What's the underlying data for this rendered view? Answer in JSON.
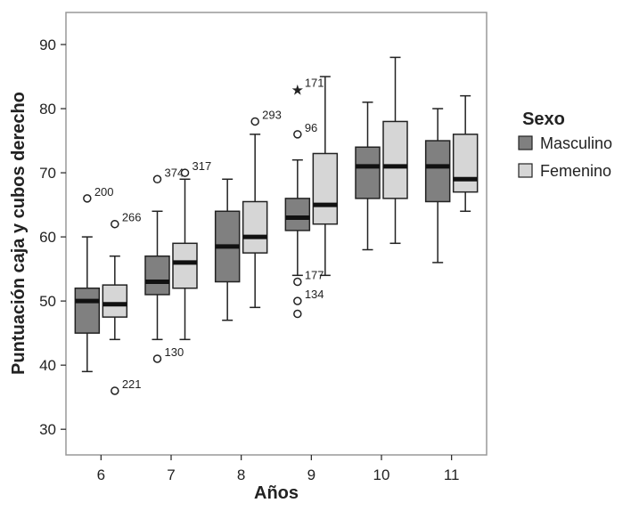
{
  "chart_data": {
    "type": "boxplot",
    "xlabel": "Años",
    "ylabel": "Puntuación caja y cubos derecho",
    "ylim": [
      26,
      95
    ],
    "yticks": [
      30,
      40,
      50,
      60,
      70,
      80,
      90
    ],
    "categories": [
      "6",
      "7",
      "8",
      "9",
      "10",
      "11"
    ],
    "legend": {
      "title": "Sexo",
      "placement": "right"
    },
    "colors": {
      "Masculino": "#808080",
      "Femenino": "#d6d6d6"
    },
    "series": [
      {
        "name": "Masculino",
        "boxes": [
          {
            "category": "6",
            "whisker_low": 39,
            "q1": 45,
            "median": 50,
            "q3": 52,
            "whisker_high": 60,
            "outliers": [
              {
                "value": 66,
                "label": "200",
                "marker": "circle"
              }
            ]
          },
          {
            "category": "7",
            "whisker_low": 44,
            "q1": 51,
            "median": 53,
            "q3": 57,
            "whisker_high": 64,
            "outliers": [
              {
                "value": 69,
                "label": "374",
                "marker": "circle"
              },
              {
                "value": 41,
                "label": "130",
                "marker": "circle"
              }
            ]
          },
          {
            "category": "8",
            "whisker_low": 47,
            "q1": 53,
            "median": 58.5,
            "q3": 64,
            "whisker_high": 69,
            "outliers": []
          },
          {
            "category": "9",
            "whisker_low": 54,
            "q1": 61,
            "median": 63,
            "q3": 66,
            "whisker_high": 72,
            "outliers": [
              {
                "value": 83,
                "label": "171",
                "marker": "star"
              },
              {
                "value": 76,
                "label": "96",
                "marker": "circle"
              },
              {
                "value": 53,
                "label": "177",
                "marker": "circle"
              },
              {
                "value": 50,
                "label": "134",
                "marker": "circle"
              },
              {
                "value": 48,
                "label": "",
                "marker": "circle"
              }
            ]
          },
          {
            "category": "10",
            "whisker_low": 58,
            "q1": 66,
            "median": 71,
            "q3": 74,
            "whisker_high": 81,
            "outliers": []
          },
          {
            "category": "11",
            "whisker_low": 56,
            "q1": 65.5,
            "median": 71,
            "q3": 75,
            "whisker_high": 80,
            "outliers": []
          }
        ]
      },
      {
        "name": "Femenino",
        "boxes": [
          {
            "category": "6",
            "whisker_low": 44,
            "q1": 47.5,
            "median": 49.5,
            "q3": 52.5,
            "whisker_high": 57,
            "outliers": [
              {
                "value": 62,
                "label": "266",
                "marker": "circle"
              },
              {
                "value": 36,
                "label": "221",
                "marker": "circle"
              }
            ]
          },
          {
            "category": "7",
            "whisker_low": 44,
            "q1": 52,
            "median": 56,
            "q3": 59,
            "whisker_high": 69,
            "outliers": [
              {
                "value": 70,
                "label": "317",
                "marker": "circle"
              }
            ]
          },
          {
            "category": "8",
            "whisker_low": 49,
            "q1": 57.5,
            "median": 60,
            "q3": 65.5,
            "whisker_high": 76,
            "outliers": [
              {
                "value": 78,
                "label": "293",
                "marker": "circle"
              }
            ]
          },
          {
            "category": "9",
            "whisker_low": 54,
            "q1": 62,
            "median": 65,
            "q3": 73,
            "whisker_high": 85,
            "outliers": []
          },
          {
            "category": "10",
            "whisker_low": 59,
            "q1": 66,
            "median": 71,
            "q3": 78,
            "whisker_high": 88,
            "outliers": []
          },
          {
            "category": "11",
            "whisker_low": 64,
            "q1": 67,
            "median": 69,
            "q3": 76,
            "whisker_high": 82,
            "outliers": []
          }
        ]
      }
    ]
  }
}
